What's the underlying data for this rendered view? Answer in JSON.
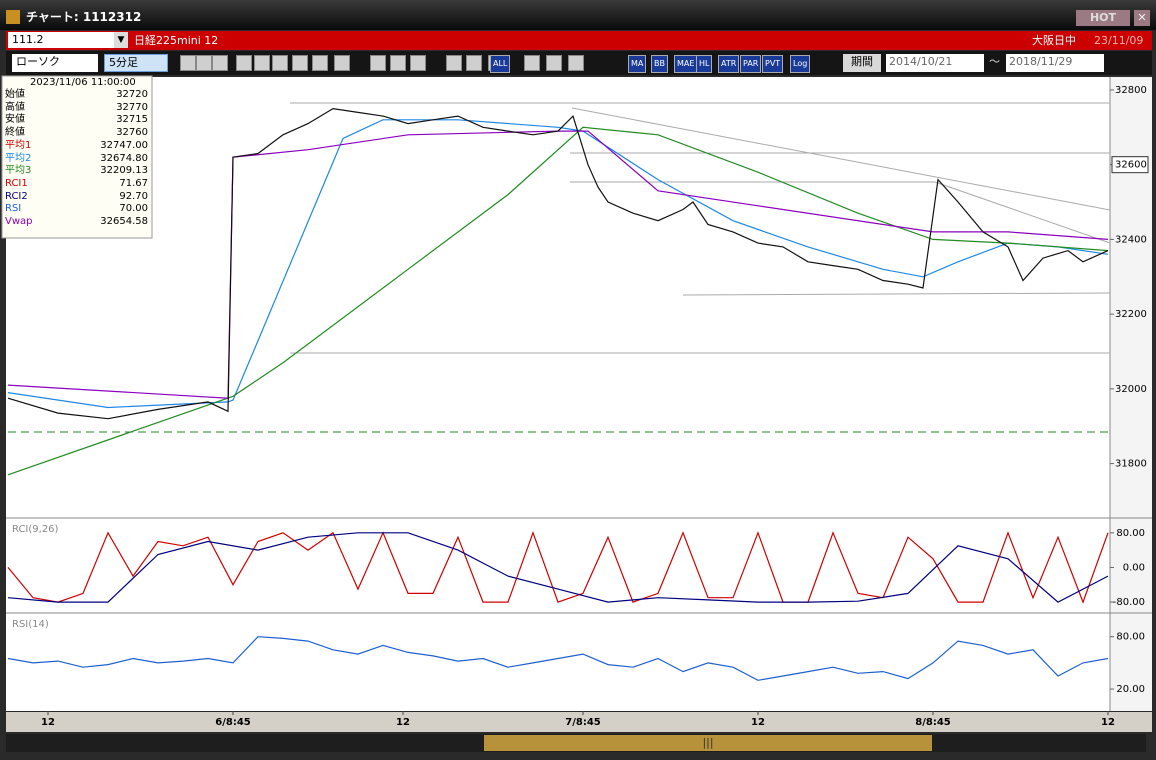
{
  "window": {
    "title": "チャート: 1112312",
    "hot": "HOT"
  },
  "symbol_bar": {
    "code": "111.2",
    "name": "日経225mini 12",
    "session": "大阪日中",
    "date": "23/11/09"
  },
  "toolbar": {
    "chart_type": "ローソク",
    "interval": "5分足",
    "buttons": [
      "ALL",
      "MA",
      "BB",
      "MAE",
      "HL",
      "ATR",
      "PAR",
      "PVT",
      "Log"
    ],
    "period": "期間",
    "from": "2014/10/21",
    "sep": "〜",
    "to": "2018/11/29"
  },
  "info": {
    "time": "2023/11/06 11:00:00",
    "rows": [
      {
        "label": "始値",
        "value": "32720",
        "color": "#000000"
      },
      {
        "label": "高値",
        "value": "32770",
        "color": "#000000"
      },
      {
        "label": "安値",
        "value": "32715",
        "color": "#000000"
      },
      {
        "label": "終値",
        "value": "32760",
        "color": "#000000"
      },
      {
        "label": "平均1",
        "value": "32747.00",
        "color": "#d00000"
      },
      {
        "label": "平均2",
        "value": "32674.80",
        "color": "#1e88e5"
      },
      {
        "label": "平均3",
        "value": "32209.13",
        "color": "#228b22"
      },
      {
        "label": "RCI1",
        "value": "71.67",
        "color": "#d00000"
      },
      {
        "label": "RCI2",
        "value": "92.70",
        "color": "#000080"
      },
      {
        "label": "RSI",
        "value": "70.00",
        "color": "#1e60d0"
      },
      {
        "label": "Vwap",
        "value": "32654.58",
        "color": "#8b00c0"
      }
    ]
  },
  "price_chart": {
    "type": "line",
    "xlim": [
      0,
      220
    ],
    "xticks": [
      {
        "value": 8,
        "label": "12"
      },
      {
        "value": 45,
        "label": "6/8:45"
      },
      {
        "value": 79,
        "label": "12"
      },
      {
        "value": 115,
        "label": "7/8:45"
      },
      {
        "value": 150,
        "label": "12"
      },
      {
        "value": 185,
        "label": "8/8:45"
      },
      {
        "value": 220,
        "label": "12"
      }
    ],
    "ylim": [
      31657,
      32832
    ],
    "yticks": [
      32800,
      32600,
      32400,
      32200,
      32000,
      31800
    ],
    "highlight_tick": 32600,
    "series": [
      {
        "color": "#1e88e5",
        "x": [
          0,
          20,
          44,
          45,
          67,
          75,
          90,
          110,
          115,
          130,
          145,
          160,
          175,
          183,
          190,
          200,
          210,
          220
        ],
        "values": [
          31990,
          31950,
          31965,
          31970,
          32670,
          32720,
          32720,
          32700,
          32690,
          32560,
          32450,
          32380,
          32320,
          32300,
          32340,
          32390,
          32380,
          32360
        ]
      },
      {
        "color": "#228b22",
        "x": [
          0,
          45,
          55,
          80,
          100,
          115,
          130,
          150,
          170,
          185,
          200,
          220
        ],
        "values": [
          31770,
          31980,
          32070,
          32320,
          32520,
          32700,
          32680,
          32580,
          32470,
          32400,
          32390,
          32370
        ]
      },
      {
        "color": "#8b00c0",
        "x": [
          0,
          44,
          45,
          60,
          80,
          110,
          116,
          130,
          150,
          185,
          200,
          220
        ],
        "values": [
          32010,
          31975,
          32620,
          32640,
          32680,
          32690,
          32690,
          32530,
          32490,
          32420,
          32420,
          32400
        ]
      },
      {
        "color": "#111111",
        "x": [
          0,
          10,
          20,
          30,
          40,
          44,
          45,
          50,
          55,
          60,
          65,
          70,
          75,
          80,
          85,
          90,
          95,
          100,
          105,
          110,
          113,
          116,
          118,
          120,
          125,
          130,
          135,
          137,
          140,
          145,
          150,
          155,
          160,
          165,
          170,
          175,
          180,
          183,
          186,
          190,
          195,
          200,
          203,
          207,
          212,
          215,
          220
        ],
        "values": [
          31975,
          31935,
          31920,
          31945,
          31965,
          31940,
          32620,
          32630,
          32680,
          32710,
          32750,
          32740,
          32730,
          32710,
          32720,
          32730,
          32700,
          32690,
          32680,
          32690,
          32730,
          32600,
          32540,
          32500,
          32470,
          32450,
          32480,
          32500,
          32440,
          32420,
          32390,
          32380,
          32340,
          32330,
          32320,
          32290,
          32280,
          32270,
          32560,
          32500,
          32420,
          32380,
          32290,
          32350,
          32370,
          32340,
          32370
        ]
      }
    ]
  },
  "rci": {
    "type": "line",
    "title": "RCI(9,26)",
    "xlim": [
      0,
      220
    ],
    "ylim": [
      -103,
      112
    ],
    "yticks": [
      {
        "value": 80,
        "label": "80.00"
      },
      {
        "value": 0,
        "label": "0.00"
      },
      {
        "value": -80,
        "label": "-80.00"
      }
    ],
    "series": [
      {
        "color": "#d00000",
        "x": [
          0,
          5,
          10,
          15,
          20,
          25,
          30,
          35,
          40,
          45,
          50,
          55,
          60,
          65,
          70,
          75,
          80,
          85,
          90,
          95,
          100,
          105,
          110,
          115,
          120,
          125,
          130,
          135,
          140,
          145,
          150,
          155,
          160,
          165,
          170,
          175,
          180,
          185,
          190,
          195,
          200,
          205,
          210,
          215,
          220
        ],
        "values": [
          0,
          -70,
          -80,
          -60,
          80,
          -20,
          60,
          50,
          70,
          -40,
          60,
          80,
          40,
          80,
          -50,
          80,
          -60,
          -60,
          70,
          -80,
          -80,
          80,
          -80,
          -60,
          70,
          -80,
          -60,
          80,
          -70,
          -70,
          80,
          -80,
          -80,
          80,
          -60,
          -70,
          70,
          20,
          -80,
          -80,
          80,
          -70,
          70,
          -80,
          80
        ]
      },
      {
        "color": "#000080",
        "x": [
          0,
          10,
          20,
          30,
          40,
          50,
          60,
          70,
          80,
          90,
          100,
          110,
          120,
          130,
          140,
          150,
          160,
          170,
          180,
          190,
          200,
          210,
          220
        ],
        "values": [
          -70,
          -80,
          -80,
          30,
          60,
          40,
          70,
          80,
          80,
          40,
          -20,
          -50,
          -80,
          -70,
          -75,
          -80,
          -80,
          -78,
          -60,
          50,
          20,
          -80,
          -20
        ]
      }
    ]
  },
  "rsi": {
    "type": "line",
    "title": "RSI(14)",
    "xlim": [
      0,
      220
    ],
    "ylim": [
      -4,
      106
    ],
    "yticks": [
      {
        "value": 80,
        "label": "80.00"
      },
      {
        "value": 20,
        "label": "20.00"
      }
    ],
    "series": [
      {
        "color": "#1e60d0",
        "x": [
          0,
          5,
          10,
          15,
          20,
          25,
          30,
          35,
          40,
          45,
          50,
          55,
          60,
          65,
          70,
          75,
          80,
          85,
          90,
          95,
          100,
          105,
          110,
          115,
          120,
          125,
          130,
          135,
          140,
          145,
          150,
          155,
          160,
          165,
          170,
          175,
          180,
          185,
          190,
          195,
          200,
          205,
          210,
          215,
          220
        ],
        "values": [
          55,
          50,
          52,
          45,
          48,
          55,
          50,
          52,
          55,
          50,
          80,
          78,
          75,
          65,
          60,
          70,
          62,
          58,
          52,
          55,
          45,
          50,
          55,
          60,
          48,
          45,
          55,
          40,
          50,
          45,
          30,
          35,
          40,
          45,
          38,
          40,
          32,
          50,
          75,
          70,
          60,
          65,
          35,
          50,
          55
        ]
      }
    ]
  }
}
